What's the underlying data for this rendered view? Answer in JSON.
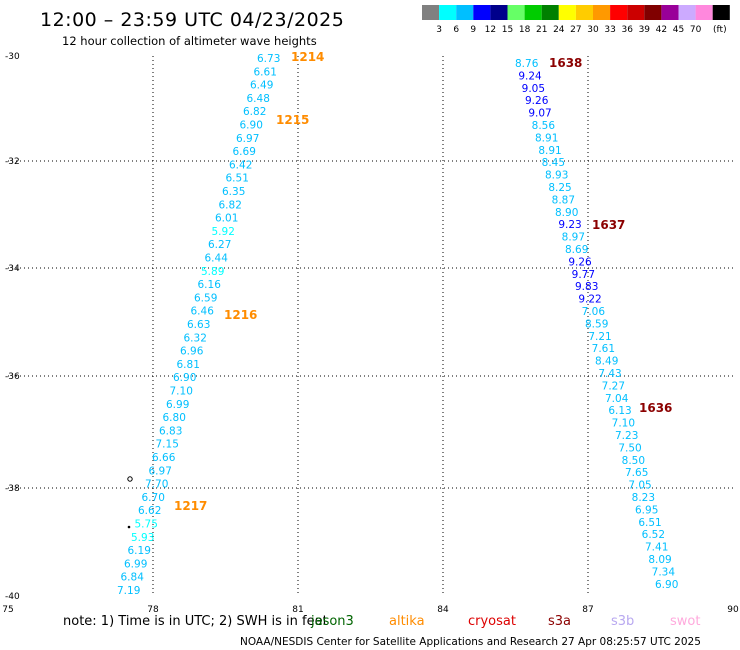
{
  "title": "12:00 – 23:59 UTC 04/23/2025",
  "subtitle": "12 hour collection of altimeter wave heights",
  "legend": {
    "unit": "(ft)",
    "bins": [
      {
        "label": "",
        "color": "#808080"
      },
      {
        "label": "3",
        "color": "#00ffff"
      },
      {
        "label": "6",
        "color": "#00bfff"
      },
      {
        "label": "9",
        "color": "#0000ff"
      },
      {
        "label": "12",
        "color": "#00008b"
      },
      {
        "label": "15",
        "color": "#66ff66"
      },
      {
        "label": "18",
        "color": "#00cc00"
      },
      {
        "label": "21",
        "color": "#008000"
      },
      {
        "label": "24",
        "color": "#ffff00"
      },
      {
        "label": "27",
        "color": "#ffcc00"
      },
      {
        "label": "30",
        "color": "#ff9900"
      },
      {
        "label": "33",
        "color": "#ff0000"
      },
      {
        "label": "36",
        "color": "#cc0000"
      },
      {
        "label": "39",
        "color": "#800000"
      },
      {
        "label": "42",
        "color": "#990099"
      },
      {
        "label": "45",
        "color": "#ccaaff"
      },
      {
        "label": "70",
        "color": "#ff88dd"
      },
      {
        "label": "",
        "color": "#000000"
      }
    ]
  },
  "axes": {
    "x_ticks": [
      "75",
      "78",
      "81",
      "84",
      "87",
      "90"
    ],
    "y_ticks": [
      "-30",
      "-32",
      "-34",
      "-36",
      "-38",
      "-40"
    ]
  },
  "track_west": {
    "values": [
      "6.73",
      "6.61",
      "6.49",
      "6.48",
      "6.82",
      "6.90",
      "6.97",
      "6.69",
      "6.42",
      "6.51",
      "6.35",
      "6.82",
      "6.01",
      "5.92",
      "6.27",
      "6.44",
      "5.89",
      "6.16",
      "6.59",
      "6.46",
      "6.63",
      "6.32",
      "6.96",
      "6.81",
      "6.90",
      "7.10",
      "6.99",
      "6.80",
      "6.83",
      "7.15",
      "6.66",
      "6.97",
      "7.70",
      "6.70",
      "6.62",
      "5.75",
      "5.93",
      "6.19",
      "6.99",
      "6.84",
      "7.19"
    ],
    "pass_labels": [
      "1214",
      "1215",
      "1216",
      "1217"
    ]
  },
  "track_east": {
    "values": [
      "8.76",
      "9.24",
      "9.05",
      "9.26",
      "9.07",
      "8.56",
      "8.91",
      "8.91",
      "8.45",
      "8.93",
      "8.25",
      "8.87",
      "8.90",
      "9.23",
      "8.97",
      "8.69",
      "9.26",
      "9.77",
      "9.83",
      "9.22",
      "7.06",
      "8.59",
      "7.21",
      "7.61",
      "8.49",
      "7.43",
      "7.27",
      "7.04",
      "6.13",
      "7.10",
      "7.23",
      "7.50",
      "8.50",
      "7.65",
      "7.05",
      "8.23",
      "6.95",
      "6.51",
      "6.52",
      "7.41",
      "8.09",
      "7.34",
      "6.90"
    ],
    "pass_labels": [
      "1638",
      "1637",
      "1636"
    ]
  },
  "note": "note:  1) Time is in UTC; 2) SWH is in feet",
  "satellites": [
    {
      "name": "jason3",
      "color": "#006400"
    },
    {
      "name": "altika",
      "color": "#ff8c00"
    },
    {
      "name": "cryosat",
      "color": "#dd0000"
    },
    {
      "name": "s3a",
      "color": "#8b0000"
    },
    {
      "name": "s3b",
      "color": "#b8a8f0"
    },
    {
      "name": "swot",
      "color": "#ffaadd"
    }
  ],
  "footer": "NOAA/NESDIS Center for Satellite Applications and Research    27 Apr 08:25:57 UTC 2025"
}
